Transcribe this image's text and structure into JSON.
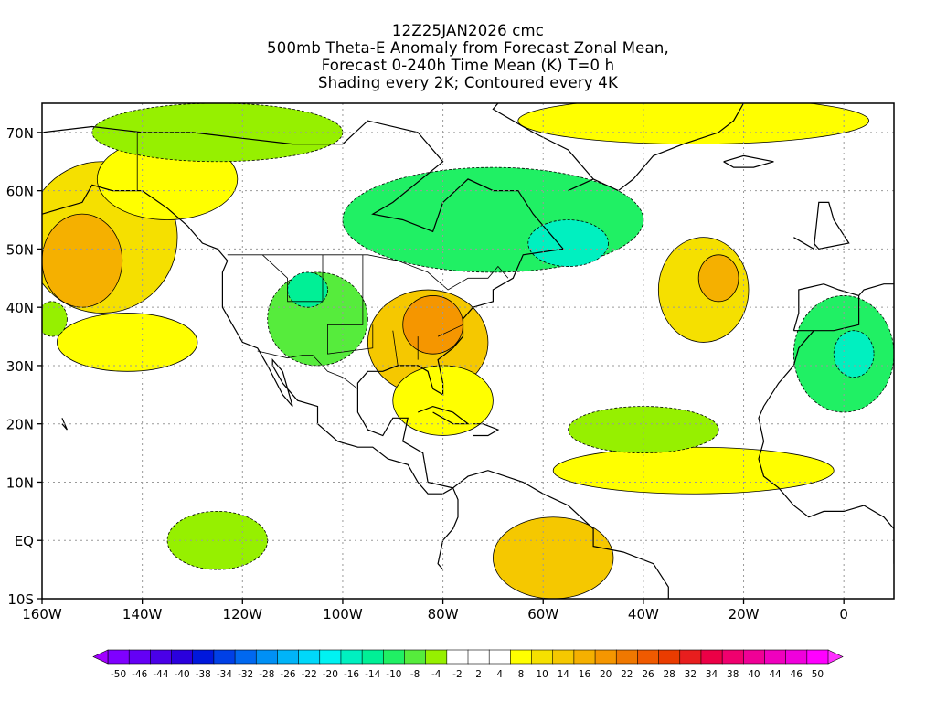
{
  "title": {
    "line1": "12Z25JAN2026 cmc",
    "line2": "500mb Theta-E Anomaly from Forecast Zonal Mean,",
    "line3": "Forecast 0-240h Time Mean (K) T=0 h",
    "line4": "Shading every 2K; Contoured every 4K"
  },
  "map": {
    "lon_range": [
      -160,
      10
    ],
    "lat_range": [
      -10,
      75
    ],
    "x_ticks": [
      {
        "lon": -160,
        "label": "160W"
      },
      {
        "lon": -140,
        "label": "140W"
      },
      {
        "lon": -120,
        "label": "120W"
      },
      {
        "lon": -100,
        "label": "100W"
      },
      {
        "lon": -80,
        "label": "80W"
      },
      {
        "lon": -60,
        "label": "60W"
      },
      {
        "lon": -40,
        "label": "40W"
      },
      {
        "lon": -20,
        "label": "20W"
      },
      {
        "lon": 0,
        "label": "0"
      }
    ],
    "y_ticks": [
      {
        "lat": 70,
        "label": "70N"
      },
      {
        "lat": 60,
        "label": "60N"
      },
      {
        "lat": 50,
        "label": "50N"
      },
      {
        "lat": 40,
        "label": "40N"
      },
      {
        "lat": 30,
        "label": "30N"
      },
      {
        "lat": 20,
        "label": "20N"
      },
      {
        "lat": 10,
        "label": "10N"
      },
      {
        "lat": 0,
        "label": "EQ"
      },
      {
        "lat": -10,
        "label": "10S"
      }
    ],
    "anomaly_regions": [
      {
        "name": "alaska-gulf-warm",
        "value": 8,
        "center": [
          -148,
          52
        ],
        "radius": [
          15,
          13
        ]
      },
      {
        "name": "alaska-gulf-warm-core",
        "value": 14,
        "center": [
          -152,
          48
        ],
        "radius": [
          8,
          8
        ]
      },
      {
        "name": "western-canada-warm",
        "value": 6,
        "center": [
          -135,
          62
        ],
        "radius": [
          14,
          7
        ]
      },
      {
        "name": "pacific-warm-band",
        "value": 6,
        "center": [
          -143,
          34
        ],
        "radius": [
          14,
          5
        ]
      },
      {
        "name": "southeast-us-warm",
        "value": 10,
        "center": [
          -83,
          34
        ],
        "radius": [
          12,
          9
        ]
      },
      {
        "name": "southeast-us-warm-core",
        "value": 16,
        "center": [
          -82,
          37
        ],
        "radius": [
          6,
          5
        ]
      },
      {
        "name": "gulf-mexico-warm",
        "value": 6,
        "center": [
          -80,
          24
        ],
        "radius": [
          10,
          6
        ]
      },
      {
        "name": "atlantic-warm",
        "value": 8,
        "center": [
          -28,
          43
        ],
        "radius": [
          9,
          9
        ]
      },
      {
        "name": "atlantic-warm-core",
        "value": 14,
        "center": [
          -25,
          45
        ],
        "radius": [
          4,
          4
        ]
      },
      {
        "name": "tropical-atlantic-warm",
        "value": 6,
        "center": [
          -30,
          12
        ],
        "radius": [
          28,
          4
        ]
      },
      {
        "name": "greenland-warm",
        "value": 6,
        "center": [
          -30,
          72
        ],
        "radius": [
          35,
          4
        ]
      },
      {
        "name": "south-america-warm",
        "value": 10,
        "center": [
          -58,
          -3
        ],
        "radius": [
          12,
          7
        ]
      },
      {
        "name": "hudson-bay-cold",
        "value": -12,
        "center": [
          -70,
          55
        ],
        "radius": [
          30,
          9
        ]
      },
      {
        "name": "labrador-cold-core",
        "value": -20,
        "center": [
          -55,
          51
        ],
        "radius": [
          8,
          4
        ]
      },
      {
        "name": "rockies-cold",
        "value": -10,
        "center": [
          -105,
          38
        ],
        "radius": [
          10,
          8
        ]
      },
      {
        "name": "rockies-cold-core",
        "value": -16,
        "center": [
          -107,
          43
        ],
        "radius": [
          4,
          3
        ]
      },
      {
        "name": "alaska-north-cold",
        "value": -8,
        "center": [
          -125,
          70
        ],
        "radius": [
          25,
          5
        ]
      },
      {
        "name": "iberia-cold",
        "value": -12,
        "center": [
          0,
          32
        ],
        "radius": [
          10,
          10
        ]
      },
      {
        "name": "iberia-cold-core",
        "value": -20,
        "center": [
          2,
          32
        ],
        "radius": [
          4,
          4
        ]
      },
      {
        "name": "subtropical-atlantic-cold",
        "value": -6,
        "center": [
          -40,
          19
        ],
        "radius": [
          15,
          4
        ]
      },
      {
        "name": "east-pacific-cold",
        "value": -6,
        "center": [
          -125,
          0
        ],
        "radius": [
          10,
          5
        ]
      },
      {
        "name": "hawaii-cold",
        "value": -6,
        "center": [
          -158,
          38
        ],
        "radius": [
          3,
          3
        ]
      }
    ]
  },
  "colorbar": {
    "labels": [
      "-50",
      "-46",
      "-44",
      "-40",
      "-38",
      "-34",
      "-32",
      "-28",
      "-26",
      "-22",
      "-20",
      "-16",
      "-14",
      "-10",
      "-8",
      "-4",
      "-2",
      "2",
      "4",
      "8",
      "10",
      "14",
      "16",
      "20",
      "22",
      "26",
      "28",
      "32",
      "34",
      "38",
      "40",
      "44",
      "46",
      "50"
    ],
    "colors": [
      "#7f00ff",
      "#6400f5",
      "#4a00e8",
      "#2a00dd",
      "#0018dc",
      "#0040e6",
      "#0068f0",
      "#0090f5",
      "#00b4f8",
      "#00d8fa",
      "#00f2f2",
      "#00f0c0",
      "#00f096",
      "#20f064",
      "#56ec3c",
      "#96f000",
      "#ffffff",
      "#ffffff",
      "#ffffff",
      "#ffff00",
      "#f5e000",
      "#f5c800",
      "#f5b000",
      "#f59600",
      "#f07800",
      "#f05a00",
      "#ea3c00",
      "#e81e1e",
      "#ec0046",
      "#f0006e",
      "#f00096",
      "#f000be",
      "#f000dc",
      "#ff00ff"
    ]
  }
}
